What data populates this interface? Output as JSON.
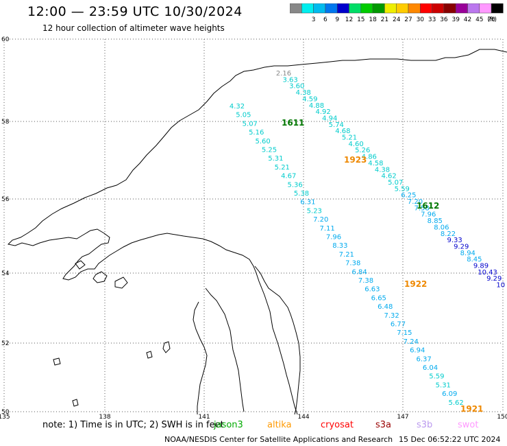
{
  "header": {
    "title": "12:00 — 23:59 UTC 10/30/2024",
    "subtitle": "12 hour collection of altimeter wave heights"
  },
  "legend": {
    "unit": "(ft)",
    "bins": [
      {
        "label": "",
        "color": "#888888"
      },
      {
        "label": "3",
        "color": "#00eeee"
      },
      {
        "label": "6",
        "color": "#00bbee"
      },
      {
        "label": "9",
        "color": "#0077ee"
      },
      {
        "label": "12",
        "color": "#0000cc"
      },
      {
        "label": "15",
        "color": "#00dd66"
      },
      {
        "label": "18",
        "color": "#00cc00"
      },
      {
        "label": "21",
        "color": "#009900"
      },
      {
        "label": "24",
        "color": "#eeee00"
      },
      {
        "label": "27",
        "color": "#ffcc00"
      },
      {
        "label": "30",
        "color": "#ff8800"
      },
      {
        "label": "33",
        "color": "#ff0000"
      },
      {
        "label": "36",
        "color": "#cc0000"
      },
      {
        "label": "39",
        "color": "#880000"
      },
      {
        "label": "42",
        "color": "#990099"
      },
      {
        "label": "45",
        "color": "#bb77ee"
      },
      {
        "label": "70",
        "color": "#ff99ff"
      },
      {
        "label": "",
        "color": "#000000"
      }
    ]
  },
  "map": {
    "lat_ticks": [
      "60",
      "58",
      "56",
      "54",
      "52",
      "50"
    ],
    "lon_ticks": [
      "135",
      "138",
      "141",
      "144",
      "147",
      "150"
    ]
  },
  "tracks": [
    {
      "time": "1611",
      "color": "#007700",
      "points": [
        "2.16",
        "3.63",
        "3.60",
        "4.38",
        "4.59",
        "4.88",
        "4.92",
        "4.94",
        "5.74",
        "4.68",
        "5.21",
        "4.60",
        "5.26",
        "4.86",
        "4.58",
        "4.38",
        "4.62",
        "5.07",
        "5.59",
        "6.25",
        "7.20",
        "7.58",
        "7.96",
        "8.85",
        "8.06",
        "8.22",
        "9.33",
        "9.29",
        "8.94",
        "8.45",
        "9.89",
        "10.43",
        "9.29",
        "10"
      ]
    },
    {
      "time": "1923",
      "color": "#ee8800",
      "points": [
        "4.32",
        "5.05",
        "5.07",
        "5.16",
        "5.60",
        "5.25",
        "5.31",
        "5.21",
        "4.67",
        "5.36",
        "5.38",
        "6.31",
        "5.23",
        "7.20",
        "7.11",
        "7.96",
        "8.33",
        "7.21",
        "7.38",
        "6.84",
        "7.38",
        "6.63",
        "6.65",
        "6.48",
        "7.32",
        "6.77",
        "7.15",
        "7.24",
        "6.94",
        "6.37",
        "6.04",
        "5.59",
        "5.31",
        "6.09",
        "5.62"
      ]
    },
    {
      "time": "1612",
      "color": "#007700"
    },
    {
      "time": "1922",
      "color": "#ee8800"
    },
    {
      "time": "1921",
      "color": "#ee8800"
    }
  ],
  "footer": {
    "note": "note:  1) Time is in UTC; 2) SWH is in feet",
    "satellites": [
      {
        "name": "jason3",
        "color": "#00aa00"
      },
      {
        "name": "altika",
        "color": "#ff9900"
      },
      {
        "name": "cryosat",
        "color": "#ff0000"
      },
      {
        "name": "s3a",
        "color": "#990000"
      },
      {
        "name": "s3b",
        "color": "#bb99ee"
      },
      {
        "name": "swot",
        "color": "#ff99ff"
      }
    ],
    "credit": "NOAA/NESDIS Center for Satellite Applications and Research",
    "timestamp": "15 Dec 06:52:22 UTC 2024"
  }
}
